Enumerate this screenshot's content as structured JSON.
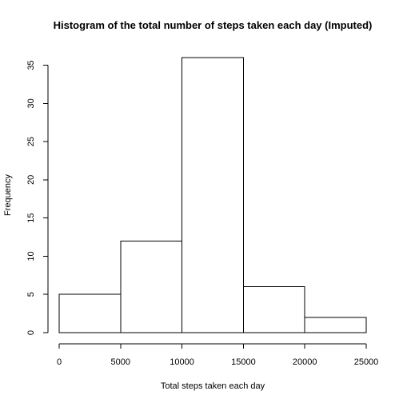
{
  "chart_data": {
    "type": "bar",
    "title": "Histogram of the total number of steps taken each day (Imputed)",
    "xlabel": "Total steps taken each day",
    "ylabel": "Frequency",
    "bins": [
      {
        "from": 0,
        "to": 5000,
        "count": 5
      },
      {
        "from": 5000,
        "to": 10000,
        "count": 12
      },
      {
        "from": 10000,
        "to": 15000,
        "count": 36
      },
      {
        "from": 15000,
        "to": 20000,
        "count": 6
      },
      {
        "from": 20000,
        "to": 25000,
        "count": 2
      }
    ],
    "xlim": [
      0,
      25000
    ],
    "ylim": [
      0,
      36
    ],
    "xticks": [
      0,
      5000,
      10000,
      15000,
      20000,
      25000
    ],
    "yticks": [
      0,
      5,
      10,
      15,
      20,
      25,
      30,
      35
    ],
    "grid": false,
    "legend": "none",
    "bar_fill": "#ffffff",
    "bar_stroke": "#000000"
  }
}
